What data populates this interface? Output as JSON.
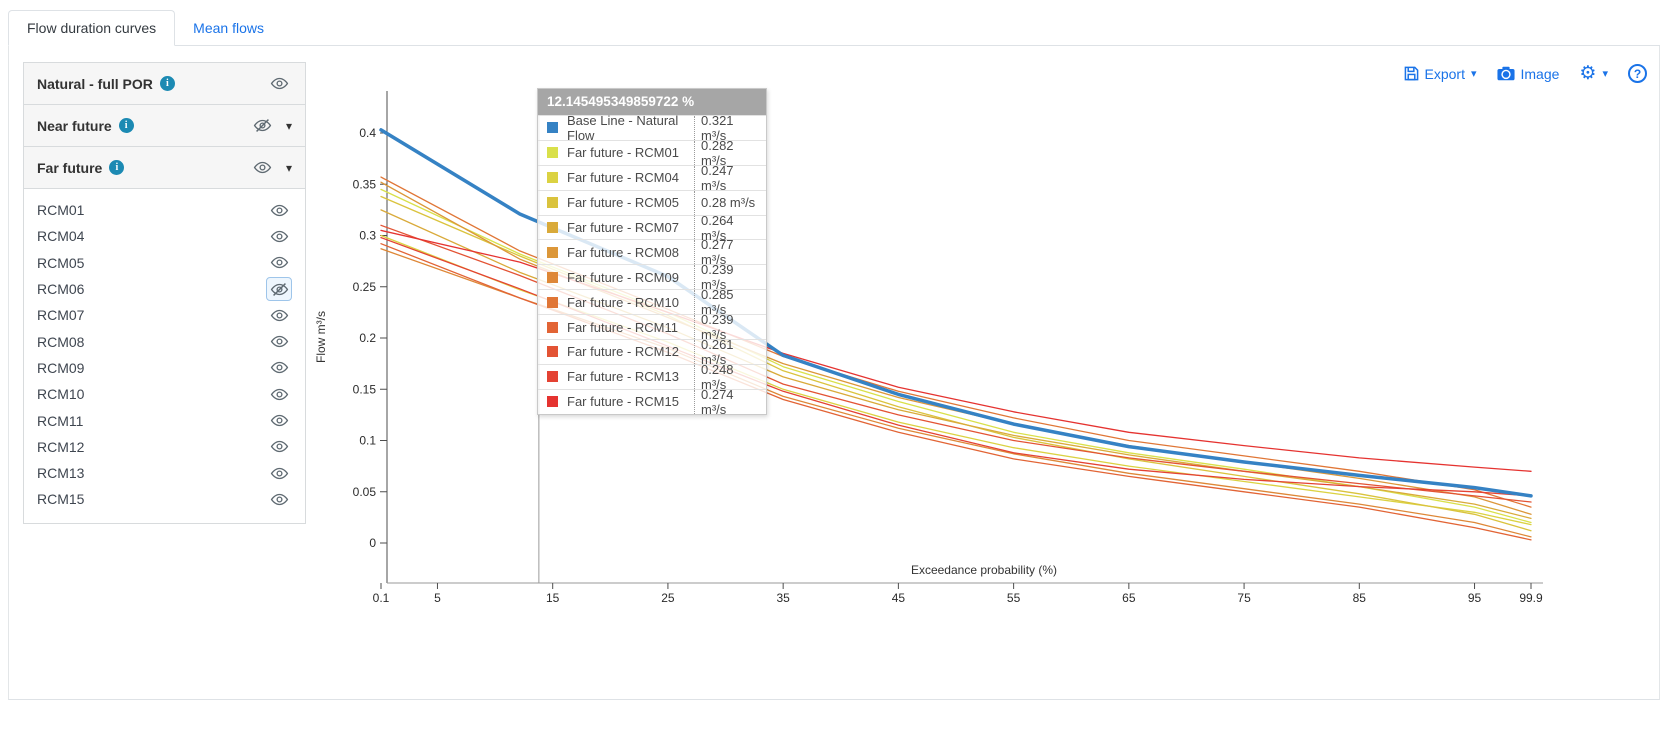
{
  "tabs": [
    {
      "label": "Flow duration curves",
      "active": true
    },
    {
      "label": "Mean flows",
      "active": false
    }
  ],
  "toolbar": {
    "export_label": "Export",
    "image_label": "Image"
  },
  "icons": {
    "caret": "▾",
    "gear": "⚙",
    "help": "?",
    "info": "i"
  },
  "sidebar": {
    "groups": [
      {
        "label": "Natural - full POR",
        "has_info": true,
        "visible": true,
        "expandable": false
      },
      {
        "label": "Near future",
        "has_info": true,
        "visible": false,
        "expandable": true
      },
      {
        "label": "Far future",
        "has_info": true,
        "visible": true,
        "expandable": true
      }
    ],
    "items": [
      {
        "label": "RCM01",
        "visible": true,
        "focused": false
      },
      {
        "label": "RCM04",
        "visible": true,
        "focused": false
      },
      {
        "label": "RCM05",
        "visible": true,
        "focused": false
      },
      {
        "label": "RCM06",
        "visible": false,
        "focused": true
      },
      {
        "label": "RCM07",
        "visible": true,
        "focused": false
      },
      {
        "label": "RCM08",
        "visible": true,
        "focused": false
      },
      {
        "label": "RCM09",
        "visible": true,
        "focused": false
      },
      {
        "label": "RCM10",
        "visible": true,
        "focused": false
      },
      {
        "label": "RCM11",
        "visible": true,
        "focused": false
      },
      {
        "label": "RCM12",
        "visible": true,
        "focused": false
      },
      {
        "label": "RCM13",
        "visible": true,
        "focused": false
      },
      {
        "label": "RCM15",
        "visible": true,
        "focused": false
      }
    ]
  },
  "tooltip": {
    "header": "12.145495349859722 %",
    "rows": [
      {
        "name": "Base Line - Natural Flow",
        "value": "0.321 m³/s",
        "color": "#3582c4"
      },
      {
        "name": "Far future - RCM01",
        "value": "0.282 m³/s",
        "color": "#d9e04a"
      },
      {
        "name": "Far future - RCM04",
        "value": "0.247 m³/s",
        "color": "#dbd242"
      },
      {
        "name": "Far future - RCM05",
        "value": "0.28 m³/s",
        "color": "#dac33d"
      },
      {
        "name": "Far future - RCM07",
        "value": "0.264 m³/s",
        "color": "#d9aa3a"
      },
      {
        "name": "Far future - RCM08",
        "value": "0.277 m³/s",
        "color": "#dc9739"
      },
      {
        "name": "Far future - RCM09",
        "value": "0.239 m³/s",
        "color": "#de8737"
      },
      {
        "name": "Far future - RCM10",
        "value": "0.285 m³/s",
        "color": "#e07636"
      },
      {
        "name": "Far future - RCM11",
        "value": "0.239 m³/s",
        "color": "#e26435"
      },
      {
        "name": "Far future - RCM12",
        "value": "0.261 m³/s",
        "color": "#e35334"
      },
      {
        "name": "Far future - RCM13",
        "value": "0.248 m³/s",
        "color": "#e44233"
      },
      {
        "name": "Far future - RCM15",
        "value": "0.274 m³/s",
        "color": "#e53330"
      }
    ]
  },
  "chart_data": {
    "type": "line",
    "xlabel": "Exceedance probability (%)",
    "ylabel": "Flow m³/s",
    "xlim": [
      0.1,
      99.9
    ],
    "ylim": [
      0,
      0.44
    ],
    "xticks": [
      0.1,
      5,
      15,
      25,
      35,
      45,
      55,
      65,
      75,
      85,
      95,
      99.9
    ],
    "yticks": [
      0,
      0.05,
      0.1,
      0.15,
      0.2,
      0.25,
      0.3,
      0.35,
      0.4
    ],
    "grid": false,
    "crosshair_x": 12.145495349859722,
    "x": [
      0.1,
      12.145,
      25,
      35,
      45,
      55,
      65,
      75,
      85,
      95,
      99.9
    ],
    "series": [
      {
        "name": "Far future - RCM01",
        "color": "#d9e04a",
        "width": 1.3,
        "values": [
          0.345,
          0.282,
          0.225,
          0.172,
          0.138,
          0.108,
          0.088,
          0.072,
          0.055,
          0.035,
          0.02
        ]
      },
      {
        "name": "Far future - RCM04",
        "color": "#dbd242",
        "width": 1.3,
        "values": [
          0.3,
          0.247,
          0.196,
          0.15,
          0.118,
          0.093,
          0.075,
          0.06,
          0.045,
          0.03,
          0.018
        ]
      },
      {
        "name": "Far future - RCM05",
        "color": "#dac33d",
        "width": 1.3,
        "values": [
          0.338,
          0.28,
          0.222,
          0.168,
          0.133,
          0.103,
          0.082,
          0.065,
          0.048,
          0.028,
          0.012
        ]
      },
      {
        "name": "Far future - RCM07",
        "color": "#d9aa3a",
        "width": 1.3,
        "values": [
          0.325,
          0.264,
          0.21,
          0.162,
          0.13,
          0.105,
          0.086,
          0.07,
          0.055,
          0.038,
          0.024
        ]
      },
      {
        "name": "Far future - RCM08",
        "color": "#dc9739",
        "width": 1.3,
        "values": [
          0.352,
          0.277,
          0.22,
          0.175,
          0.142,
          0.116,
          0.095,
          0.079,
          0.063,
          0.045,
          0.028
        ]
      },
      {
        "name": "Far future - RCM09",
        "color": "#de8737",
        "width": 1.3,
        "values": [
          0.287,
          0.239,
          0.19,
          0.143,
          0.112,
          0.087,
          0.068,
          0.053,
          0.038,
          0.02,
          0.006
        ]
      },
      {
        "name": "Far future - RCM10",
        "color": "#e07636",
        "width": 1.3,
        "values": [
          0.357,
          0.285,
          0.228,
          0.182,
          0.148,
          0.122,
          0.1,
          0.085,
          0.07,
          0.052,
          0.035
        ]
      },
      {
        "name": "Far future - RCM11",
        "color": "#e26435",
        "width": 1.3,
        "values": [
          0.292,
          0.239,
          0.186,
          0.14,
          0.108,
          0.082,
          0.065,
          0.05,
          0.035,
          0.015,
          0.003
        ]
      },
      {
        "name": "Far future - RCM12",
        "color": "#e35334",
        "width": 1.3,
        "values": [
          0.31,
          0.261,
          0.204,
          0.155,
          0.125,
          0.1,
          0.083,
          0.07,
          0.058,
          0.046,
          0.04
        ]
      },
      {
        "name": "Far future - RCM13",
        "color": "#e44233",
        "width": 1.3,
        "values": [
          0.298,
          0.248,
          0.192,
          0.148,
          0.115,
          0.088,
          0.072,
          0.062,
          0.055,
          0.05,
          0.046
        ]
      },
      {
        "name": "Far future - RCM15",
        "color": "#e53330",
        "width": 1.3,
        "values": [
          0.305,
          0.274,
          0.225,
          0.185,
          0.152,
          0.128,
          0.108,
          0.095,
          0.083,
          0.074,
          0.07
        ]
      },
      {
        "name": "Base Line - Natural Flow",
        "color": "#3582c4",
        "width": 3.5,
        "values": [
          0.403,
          0.321,
          0.26,
          0.183,
          0.145,
          0.116,
          0.094,
          0.079,
          0.066,
          0.054,
          0.046
        ]
      }
    ]
  }
}
